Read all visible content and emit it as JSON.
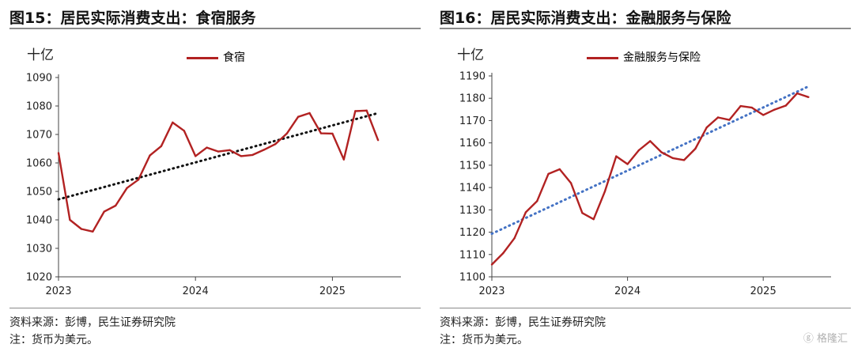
{
  "panels": [
    {
      "title": "图15：居民实际消费支出：食宿服务",
      "unit": "十亿",
      "source": "资料来源：彭博，民生证券研究院",
      "note": "注：货币为美元。",
      "chart_data": {
        "type": "line",
        "series": [
          {
            "name": "食宿",
            "color": "#b22222",
            "x": [
              "2023-01",
              "2023-02",
              "2023-03",
              "2023-04",
              "2023-05",
              "2023-06",
              "2023-07",
              "2023-08",
              "2023-09",
              "2023-10",
              "2023-11",
              "2023-12",
              "2024-01",
              "2024-02",
              "2024-03",
              "2024-04",
              "2024-05",
              "2024-06",
              "2024-07",
              "2024-08",
              "2024-09",
              "2024-10",
              "2024-11",
              "2024-12",
              "2025-01",
              "2025-02",
              "2025-03",
              "2025-04",
              "2025-05"
            ],
            "values": [
              1063.5,
              1040.0,
              1036.8,
              1035.9,
              1042.9,
              1045.0,
              1051.2,
              1054.1,
              1062.6,
              1065.9,
              1074.2,
              1071.3,
              1062.4,
              1065.4,
              1064.0,
              1064.5,
              1062.4,
              1062.8,
              1064.6,
              1066.6,
              1070.3,
              1076.2,
              1077.5,
              1070.4,
              1070.3,
              1061.2,
              1078.2,
              1078.4,
              1068.0
            ]
          }
        ],
        "trendline": {
          "style": "dotted",
          "color": "#111111",
          "from": [
            "2023-01",
            1047.2
          ],
          "to": [
            "2025-05",
            1077.5
          ]
        },
        "x_ticks": [
          "2023",
          "2024",
          "2025"
        ],
        "x_tick_positions": [
          "2023-01",
          "2024-01",
          "2025-01"
        ],
        "y_ticks": [
          1020,
          1030,
          1040,
          1050,
          1060,
          1070,
          1080,
          1090
        ],
        "ylim": [
          1020,
          1090
        ],
        "xlim": [
          "2023-01",
          "2025-07"
        ],
        "grid": false,
        "legend_position": "top-center"
      }
    },
    {
      "title": "图16：居民实际消费支出：金融服务与保险",
      "unit": "十亿",
      "source": "资料来源：彭博，民生证券研究院",
      "note": "注：货币为美元。",
      "chart_data": {
        "type": "line",
        "series": [
          {
            "name": "金融服务与保险",
            "color": "#b22222",
            "x": [
              "2023-01",
              "2023-02",
              "2023-03",
              "2023-04",
              "2023-05",
              "2023-06",
              "2023-07",
              "2023-08",
              "2023-09",
              "2023-10",
              "2023-11",
              "2023-12",
              "2024-01",
              "2024-02",
              "2024-03",
              "2024-04",
              "2024-05",
              "2024-06",
              "2024-07",
              "2024-08",
              "2024-09",
              "2024-10",
              "2024-11",
              "2024-12",
              "2025-01",
              "2025-02",
              "2025-03",
              "2025-04",
              "2025-05"
            ],
            "values": [
              1105.5,
              1110.6,
              1117.3,
              1128.9,
              1133.9,
              1146.1,
              1148.2,
              1142.0,
              1128.6,
              1125.8,
              1138.3,
              1154.0,
              1150.5,
              1156.7,
              1160.8,
              1155.8,
              1153.2,
              1152.3,
              1157.4,
              1166.9,
              1171.4,
              1170.3,
              1176.5,
              1175.8,
              1172.5,
              1174.9,
              1176.7,
              1182.2,
              1180.5
            ]
          }
        ],
        "trendline": {
          "style": "dotted",
          "color": "#4472c4",
          "from": [
            "2023-01",
            1119.3
          ],
          "to": [
            "2025-05",
            1185.3
          ]
        },
        "x_ticks": [
          "2023",
          "2024",
          "2025"
        ],
        "x_tick_positions": [
          "2023-01",
          "2024-01",
          "2025-01"
        ],
        "y_ticks": [
          1100,
          1110,
          1120,
          1130,
          1140,
          1150,
          1160,
          1170,
          1180,
          1190
        ],
        "ylim": [
          1100,
          1190
        ],
        "xlim": [
          "2023-01",
          "2025-07"
        ],
        "grid": false,
        "legend_position": "top-center"
      }
    }
  ],
  "watermark": "格隆汇"
}
